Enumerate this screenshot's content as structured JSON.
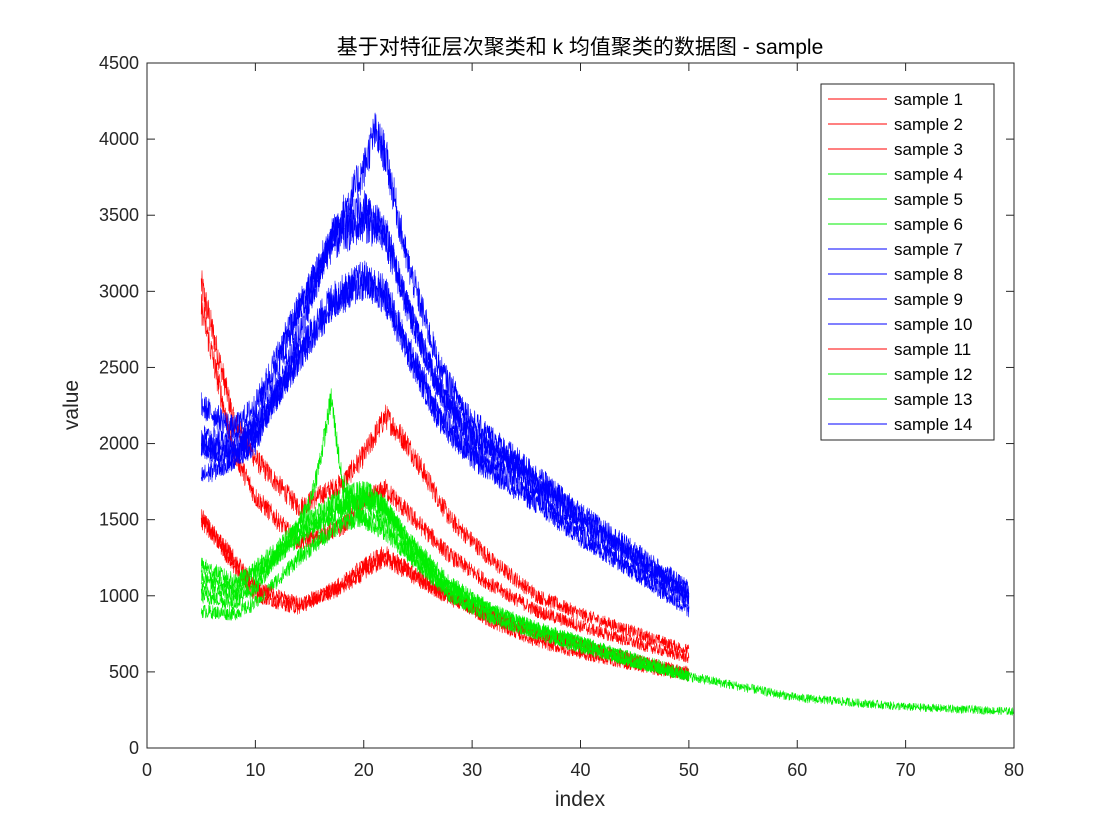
{
  "chart_data": {
    "type": "line",
    "title": "基于对特征层次聚类和 k 均值聚类的数据图 - sample",
    "xlabel": "index",
    "ylabel": "value",
    "xlim": [
      0,
      80
    ],
    "ylim": [
      0,
      4500
    ],
    "xticks": [
      0,
      10,
      20,
      30,
      40,
      50,
      60,
      70,
      80
    ],
    "yticks": [
      0,
      500,
      1000,
      1500,
      2000,
      2500,
      3000,
      3500,
      4000,
      4500
    ],
    "legend_position": "top-right",
    "grid": false,
    "colors": {
      "red": "#ff0000",
      "green": "#00ee00",
      "blue": "#0000ff"
    },
    "series": [
      {
        "name": "sample 1",
        "color": "#ff0000",
        "x": [
          5,
          8,
          10,
          14,
          18,
          20,
          22,
          24,
          28,
          32,
          36,
          40,
          45,
          50
        ],
        "y": [
          3050,
          2150,
          1900,
          1580,
          1740,
          1920,
          2180,
          2000,
          1500,
          1220,
          1000,
          880,
          760,
          640
        ]
      },
      {
        "name": "sample 2",
        "color": "#ff0000",
        "x": [
          5,
          8,
          10,
          14,
          18,
          20,
          22,
          24,
          28,
          32,
          36,
          40,
          45,
          50
        ],
        "y": [
          2900,
          1950,
          1650,
          1350,
          1450,
          1620,
          1700,
          1550,
          1260,
          1060,
          900,
          800,
          690,
          590
        ]
      },
      {
        "name": "sample 3",
        "color": "#ff0000",
        "x": [
          5,
          8,
          10,
          14,
          18,
          20,
          22,
          24,
          28,
          32,
          36,
          40,
          45,
          50
        ],
        "y": [
          1520,
          1200,
          1000,
          920,
          1080,
          1200,
          1280,
          1180,
          1000,
          820,
          700,
          620,
          540,
          470
        ]
      },
      {
        "name": "sample 4",
        "color": "#00ee00",
        "x": [
          5,
          8,
          10,
          14,
          18,
          20,
          22,
          24,
          28,
          32,
          36,
          40,
          45,
          50,
          55,
          60,
          70,
          80
        ],
        "y": [
          1120,
          1060,
          1180,
          1450,
          1650,
          1700,
          1600,
          1350,
          1050,
          880,
          780,
          690,
          560,
          470,
          400,
          330,
          270,
          240
        ]
      },
      {
        "name": "sample 5",
        "color": "#00ee00",
        "x": [
          5,
          8,
          10,
          14,
          18,
          20,
          22,
          24,
          28,
          32,
          36,
          40,
          45,
          50
        ],
        "y": [
          900,
          880,
          950,
          1250,
          1480,
          1520,
          1480,
          1300,
          1000,
          850,
          750,
          660,
          560,
          470
        ]
      },
      {
        "name": "sample 6",
        "color": "#00ee00",
        "x": [
          5,
          8,
          10,
          14,
          18,
          20,
          22,
          24,
          28,
          32,
          36,
          40,
          45,
          50
        ],
        "y": [
          1050,
          1000,
          1100,
          1420,
          1580,
          1620,
          1560,
          1350,
          1050,
          900,
          780,
          700,
          590,
          490
        ]
      },
      {
        "name": "sample 7",
        "color": "#0000ff",
        "x": [
          5,
          8,
          10,
          14,
          17,
          20,
          22,
          24,
          27,
          30,
          35,
          40,
          45,
          50
        ],
        "y": [
          1780,
          1900,
          2150,
          2850,
          3350,
          3550,
          3400,
          2900,
          2350,
          2050,
          1800,
          1500,
          1250,
          1000
        ]
      },
      {
        "name": "sample 8",
        "color": "#0000ff",
        "x": [
          5,
          8,
          10,
          14,
          17,
          20,
          22,
          24,
          27,
          30,
          35,
          40,
          45,
          50
        ],
        "y": [
          2050,
          2000,
          2100,
          2600,
          2950,
          3100,
          3000,
          2650,
          2200,
          1950,
          1720,
          1420,
          1180,
          950
        ]
      },
      {
        "name": "sample 9",
        "color": "#0000ff",
        "x": [
          5,
          8,
          10,
          14,
          17,
          20,
          22,
          24,
          27,
          30,
          35,
          40,
          45,
          50
        ],
        "y": [
          1950,
          1950,
          2050,
          2550,
          2900,
          3050,
          2950,
          2600,
          2150,
          1900,
          1650,
          1380,
          1150,
          900
        ]
      },
      {
        "name": "sample 10",
        "color": "#0000ff",
        "x": [
          5,
          8,
          10,
          14,
          17,
          20,
          22,
          24,
          27,
          30,
          35,
          40,
          45,
          50
        ],
        "y": [
          2250,
          2100,
          2250,
          2900,
          3300,
          3450,
          3350,
          2900,
          2350,
          2050,
          1800,
          1500,
          1260,
          1000
        ]
      },
      {
        "name": "sample 11",
        "color": "#ff0000",
        "x": [
          5,
          8,
          10,
          14,
          18,
          20,
          22,
          24,
          28,
          32,
          36,
          40,
          45,
          50
        ],
        "y": [
          1500,
          1250,
          1050,
          950,
          1050,
          1150,
          1250,
          1150,
          980,
          860,
          760,
          680,
          580,
          500
        ]
      },
      {
        "name": "sample 12",
        "color": "#00ee00",
        "x": [
          5,
          8,
          10,
          13,
          15,
          16,
          17,
          18,
          20,
          22,
          24,
          28,
          32,
          36,
          40,
          45,
          50
        ],
        "y": [
          1000,
          950,
          1050,
          1350,
          1600,
          1900,
          2300,
          1750,
          1500,
          1420,
          1280,
          1000,
          850,
          750,
          660,
          560,
          470
        ]
      },
      {
        "name": "sample 13",
        "color": "#00ee00",
        "x": [
          5,
          8,
          10,
          14,
          18,
          20,
          22,
          24,
          28,
          32,
          36,
          40,
          45,
          50
        ],
        "y": [
          1200,
          1100,
          1150,
          1380,
          1580,
          1650,
          1580,
          1380,
          1080,
          900,
          790,
          700,
          580,
          480
        ]
      },
      {
        "name": "sample 14",
        "color": "#0000ff",
        "x": [
          5,
          8,
          10,
          14,
          17,
          20,
          21,
          22,
          24,
          27,
          30,
          35,
          40,
          45,
          50
        ],
        "y": [
          2000,
          1900,
          2000,
          2700,
          3350,
          3800,
          4050,
          3900,
          3200,
          2500,
          2150,
          1850,
          1550,
          1300,
          1050
        ]
      }
    ]
  }
}
